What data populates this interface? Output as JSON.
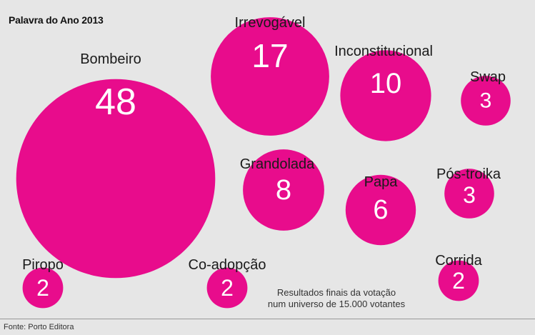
{
  "title": "Palavra do Ano 2013",
  "note_line1": "Resultados finais da votação",
  "note_line2": "num universo de 15.000 votantes",
  "source": "Fonte: Porto Editora",
  "colors": {
    "bubble": "#e80c8c",
    "label": "#1a1a1a",
    "value": "#ffffff",
    "background": "#e6e6e6"
  },
  "chart_data": {
    "type": "bubble",
    "title": "Palavra do Ano 2013",
    "unit": "percent of votes",
    "categories": [
      "Bombeiro",
      "Irrevogável",
      "Inconstitucional",
      "Swap",
      "Grandolada",
      "Papa",
      "Pós-troika",
      "Piropo",
      "Co-adopção",
      "Corrida"
    ],
    "values": [
      48,
      17,
      10,
      3,
      8,
      6,
      3,
      2,
      2,
      2
    ]
  }
}
